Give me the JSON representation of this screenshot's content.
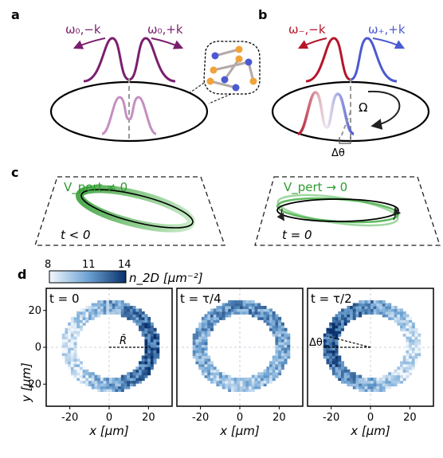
{
  "panel_labels": {
    "a": "a",
    "b": "b",
    "c": "c",
    "d": "d"
  },
  "panel_a": {
    "mode_left": "ω₀,−k",
    "mode_right": "ω₀,+k",
    "color": "#7a1f6e",
    "light_color": "#c48fc0"
  },
  "panel_b": {
    "mode_left": "ω₋,−k",
    "mode_right": "ω₊,+k",
    "color_minus": "#b5152b",
    "color_plus": "#4c5ad0",
    "rotation_label": "Ω",
    "angle_label": "Δθ"
  },
  "panel_c": {
    "left_potential": "V_pert ≠ 0",
    "left_time": "t < 0",
    "right_potential": "V_pert → 0",
    "right_time": "t = 0",
    "green": "#2e9b2e"
  },
  "colorbar": {
    "ticks": [
      "8",
      "11",
      "14"
    ],
    "label": "n_2D [μm⁻²]",
    "min": 8,
    "max": 14
  },
  "chart_data": [
    {
      "type": "heatmap",
      "title": "t = 0",
      "xlabel": "x [μm]",
      "ylabel": "y [μm]",
      "xticks": [
        "-20",
        "0",
        "20"
      ],
      "yticks": [
        "20",
        "0",
        "-20"
      ],
      "xlim": [
        -32,
        32
      ],
      "ylim": [
        -32,
        32
      ],
      "ring_radius": 21,
      "annotation": "R̄",
      "density_max_angle_deg": 0
    },
    {
      "type": "heatmap",
      "title": "t = τ/4",
      "xlabel": "x [μm]",
      "xticks": [
        "-20",
        "0",
        "20"
      ],
      "xlim": [
        -32,
        32
      ],
      "ylim": [
        -32,
        32
      ],
      "ring_radius": 21,
      "density_max_angle_deg": 90
    },
    {
      "type": "heatmap",
      "title": "t = τ/2",
      "xlabel": "x [μm]",
      "xticks": [
        "-20",
        "0",
        "20"
      ],
      "xlim": [
        -32,
        32
      ],
      "ylim": [
        -32,
        32
      ],
      "ring_radius": 21,
      "annotation": "Δθ",
      "density_max_angle_deg": 165
    }
  ]
}
